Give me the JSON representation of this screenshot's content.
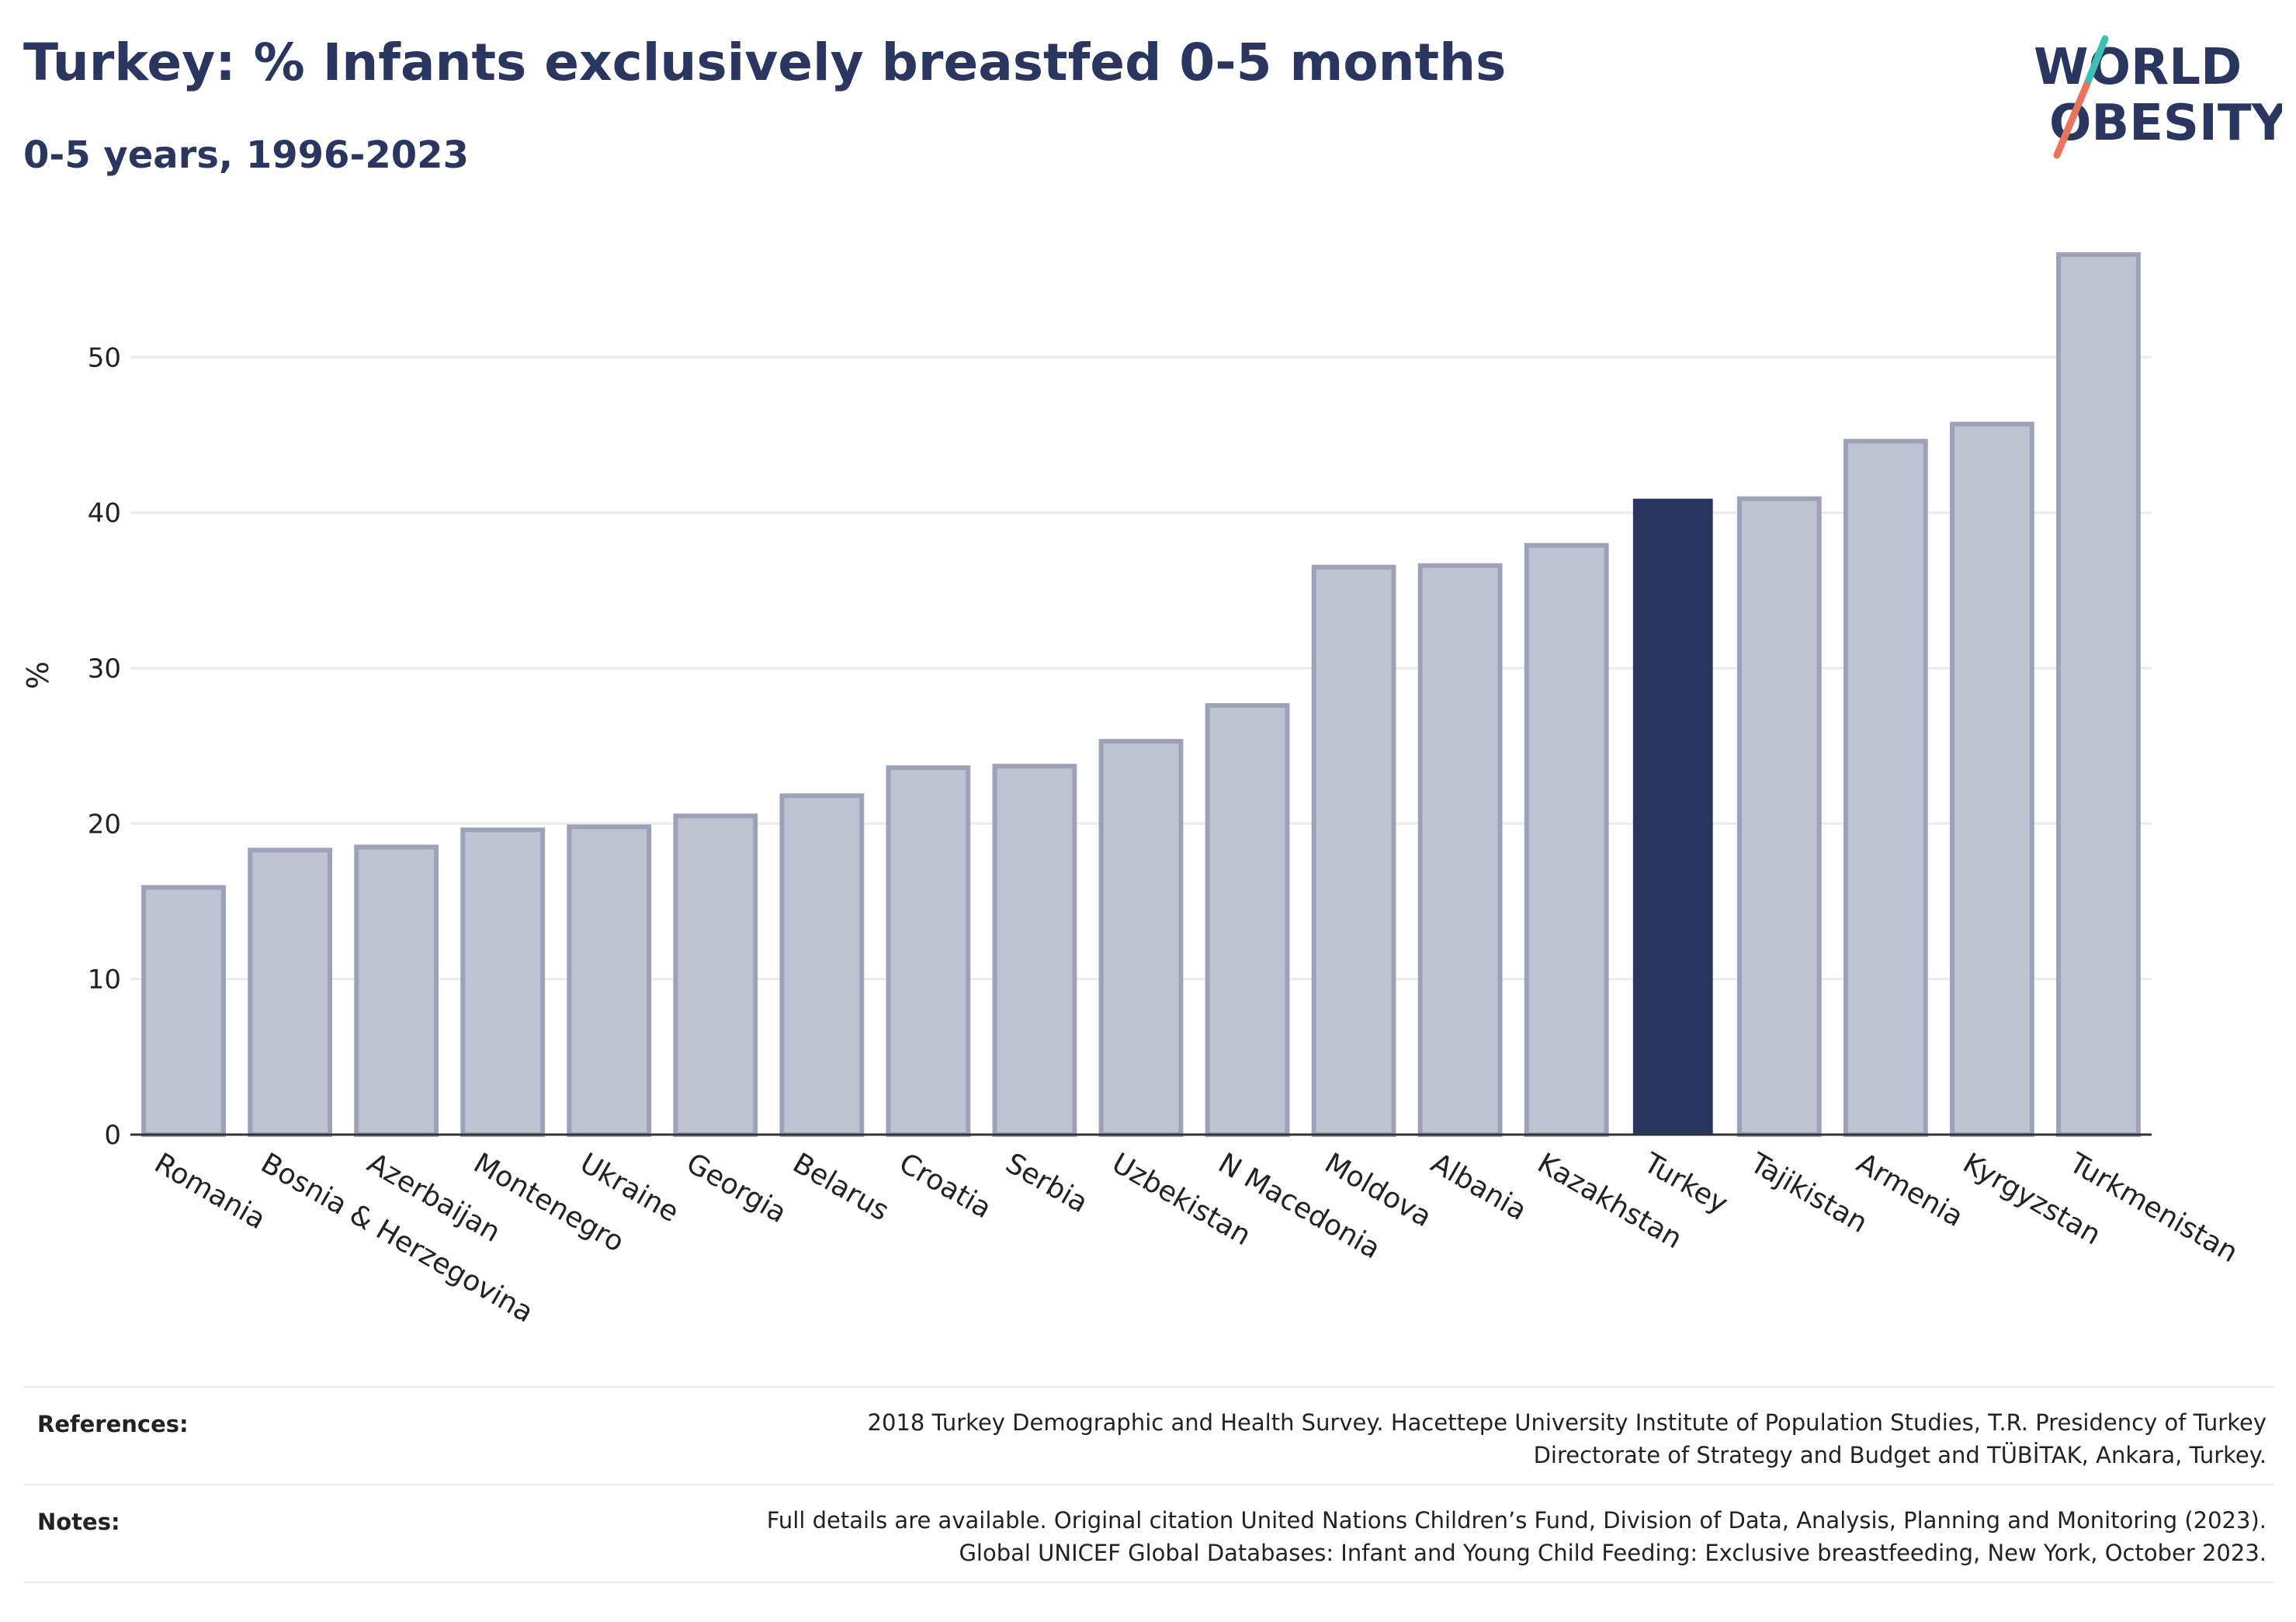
{
  "header": {
    "title": "Turkey: % Infants exclusively breastfed 0-5 months",
    "subtitle": "0-5 years, 1996-2023"
  },
  "logo": {
    "line1": "WORLD",
    "line2": "OBESITY",
    "colors": {
      "text": "#2a365f",
      "slash_top": "#3fbfb5",
      "slash_bottom": "#e8735e"
    }
  },
  "chart_data": {
    "type": "bar",
    "ylabel": "%",
    "xlabel": "",
    "ylim": [
      0,
      58
    ],
    "yticks": [
      0,
      10,
      20,
      30,
      40,
      50
    ],
    "grid": true,
    "highlight": "Turkey",
    "colors": {
      "bar": "#bfc2d0",
      "bar_edge": "#9da2b9",
      "highlight": "#2a365f",
      "grid": "#ebebef",
      "axis": "#333333"
    },
    "categories": [
      "Romania",
      "Bosnia & Herzegovina",
      "Azerbaijan",
      "Montenegro",
      "Ukraine",
      "Georgia",
      "Belarus",
      "Croatia",
      "Serbia",
      "Uzbekistan",
      "N Macedonia",
      "Moldova",
      "Albania",
      "Kazakhstan",
      "Turkey",
      "Tajikistan",
      "Armenia",
      "Kyrgyzstan",
      "Turkmenistan"
    ],
    "values": [
      15.9,
      18.3,
      18.5,
      19.6,
      19.8,
      20.5,
      21.8,
      23.6,
      23.7,
      25.3,
      27.6,
      36.5,
      36.6,
      37.9,
      40.9,
      40.9,
      44.6,
      45.7,
      56.6
    ]
  },
  "footer": {
    "references_label": "References:",
    "references_lines": [
      "2018 Turkey Demographic and Health Survey. Hacettepe University Institute of Population Studies, T.R. Presidency of Turkey",
      "Directorate of Strategy and Budget and TÜBİTAK, Ankara, Turkey."
    ],
    "notes_label": "Notes:",
    "notes_lines": [
      "Full details are available. Original citation United Nations Children’s Fund, Division of Data, Analysis, Planning and Monitoring (2023).",
      "Global UNICEF Global Databases: Infant and Young Child Feeding: Exclusive breastfeeding, New York, October 2023."
    ]
  }
}
